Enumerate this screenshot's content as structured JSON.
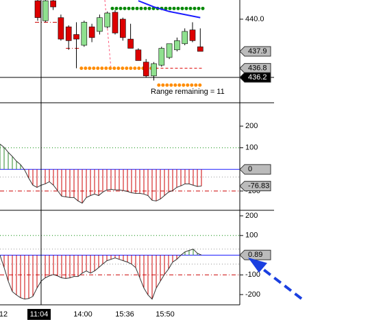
{
  "chart_data": [
    {
      "type": "candlestick",
      "ylim": [
        434.55,
        441.25
      ],
      "yticks": [
        {
          "value": 440,
          "label": "440.0"
        }
      ],
      "up_color": "#8fe08f",
      "down_color": "#dd0000",
      "open": [
        441.2,
        439.9,
        441.2,
        440.1,
        439.5,
        439.0,
        438.3,
        439.5,
        439.2,
        439.5,
        440.45,
        440.0,
        438.7,
        438.0,
        437.2,
        436.3,
        437.0,
        437.5,
        438.0,
        438.4,
        439.3,
        438.2
      ],
      "high": [
        441.25,
        441.25,
        441.25,
        440.3,
        439.6,
        439.8,
        439.9,
        439.7,
        440.3,
        440.5,
        440.6,
        440.1,
        439.7,
        438.1,
        437.4,
        437.2,
        438.2,
        438.4,
        438.8,
        439.4,
        439.8,
        439.4
      ],
      "low": [
        439.9,
        439.8,
        440.6,
        438.6,
        438.0,
        436.8,
        438.2,
        438.5,
        439.0,
        439.4,
        439.0,
        438.6,
        438.1,
        437.3,
        436.2,
        436.0,
        436.9,
        437.4,
        437.9,
        438.3,
        438.5,
        437.9
      ],
      "close": [
        440.1,
        441.2,
        440.8,
        438.7,
        438.6,
        438.7,
        439.8,
        438.8,
        440.1,
        440.4,
        439.1,
        438.8,
        438.1,
        437.3,
        436.3,
        437.1,
        438.1,
        438.4,
        438.6,
        439.2,
        438.6,
        437.9
      ],
      "ma": {
        "color": "#1a1aff",
        "values": [
          null,
          null,
          null,
          null,
          null,
          null,
          null,
          null,
          null,
          null,
          null,
          null,
          null,
          441.2,
          441.0,
          440.8,
          440.65,
          440.5,
          440.4,
          440.3,
          440.2,
          440.1
        ]
      },
      "levels": [
        {
          "value": 440.7,
          "color": "#008800",
          "style": "dots",
          "from": 10,
          "to": 21
        },
        {
          "value": 436.8,
          "color": "#ff8c00",
          "style": "dots",
          "from": 6,
          "to": 15
        },
        {
          "value": 436.8,
          "color": "#dd0000",
          "style": "dash",
          "from": 15,
          "to": 21
        },
        {
          "value": 435.7,
          "color": "#ff8c00",
          "style": "dots",
          "from": 16,
          "to": 21
        },
        {
          "value": 439.8,
          "color": "#cc0000",
          "style": "dashdot",
          "from": 0,
          "to": 3
        },
        {
          "value": 438.1,
          "color": "#cc0000",
          "style": "dashdot",
          "from": 4,
          "to": 5
        }
      ],
      "tags": [
        437.9,
        436.8
      ],
      "crosshair": 436.2,
      "annotation": "Range remaining = 11"
    },
    {
      "type": "oscillator",
      "ylim": [
        -189,
        308
      ],
      "yticks": [
        200,
        100,
        -100
      ],
      "values": [
        117,
        102,
        79,
        60,
        38,
        22,
        -3,
        -41,
        -73,
        -83,
        -73,
        -67,
        -57,
        -73,
        -98,
        -124,
        -127,
        -130,
        -130,
        -146,
        -156,
        -130,
        -121,
        -114,
        -121,
        -105,
        -95,
        -92,
        -95,
        -95,
        -98,
        -102,
        -108,
        -111,
        -111,
        -114,
        -121,
        -143,
        -146,
        -137,
        -121,
        -105,
        -98,
        -83,
        -76,
        -67,
        -67,
        -73,
        -79,
        -76.83
      ],
      "up_color": "#2a8a2a",
      "down_color": "#cc0000",
      "line_color": "#333333",
      "levels": [
        {
          "value": 100,
          "color": "#008800",
          "style": "dot"
        },
        {
          "value": 0,
          "color": "#1a1aff",
          "style": "solid"
        },
        {
          "value": -35,
          "color": "#999999",
          "style": "dot"
        },
        {
          "value": -100,
          "color": "#cc0000",
          "style": "dashdot"
        }
      ],
      "tags": [
        0,
        -76.83
      ]
    },
    {
      "type": "oscillator",
      "ylim": [
        -252,
        228
      ],
      "yticks": [
        200,
        100,
        -100,
        -200
      ],
      "values": [
        0,
        -63,
        -132,
        -185,
        -202,
        -216,
        -223,
        -220,
        -209,
        -167,
        -132,
        -115,
        -105,
        -98,
        -105,
        -115,
        -118,
        -115,
        -108,
        -108,
        -91,
        -80,
        -91,
        -80,
        -63,
        -45,
        -28,
        -21,
        -14,
        -21,
        -28,
        -35,
        -45,
        -63,
        -115,
        -167,
        -202,
        -223,
        -167,
        -132,
        -98,
        -70,
        -35,
        -21,
        0,
        17,
        24,
        31,
        10,
        0.89
      ],
      "up_color": "#2a8a2a",
      "down_color": "#cc0000",
      "line_color": "#333333",
      "levels": [
        {
          "value": 100,
          "color": "#008800",
          "style": "dot"
        },
        {
          "value": 31,
          "color": "#999999",
          "style": "dot"
        },
        {
          "value": 0,
          "color": "#1a1aff",
          "style": "solid"
        },
        {
          "value": -45,
          "color": "#999999",
          "style": "dot"
        },
        {
          "value": -100,
          "color": "#cc0000",
          "style": "dashdot"
        }
      ],
      "tags": [
        0.89
      ]
    }
  ],
  "time_axis": {
    "labels": [
      "12",
      "11:04",
      "14:00",
      "15:36",
      "15:50"
    ],
    "selected": 1
  }
}
